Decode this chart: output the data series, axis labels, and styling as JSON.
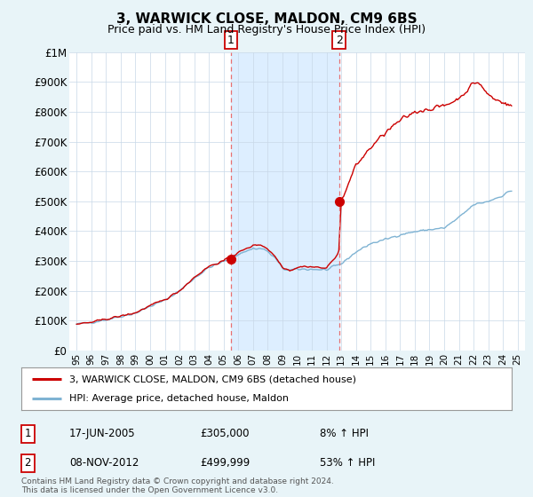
{
  "title": "3, WARWICK CLOSE, MALDON, CM9 6BS",
  "subtitle": "Price paid vs. HM Land Registry's House Price Index (HPI)",
  "legend_line1": "3, WARWICK CLOSE, MALDON, CM9 6BS (detached house)",
  "legend_line2": "HPI: Average price, detached house, Maldon",
  "annotation1_label": "1",
  "annotation1_date": "17-JUN-2005",
  "annotation1_price": "£305,000",
  "annotation1_hpi": "8% ↑ HPI",
  "annotation1_year": 2005.5,
  "annotation1_value": 305000,
  "annotation2_label": "2",
  "annotation2_date": "08-NOV-2012",
  "annotation2_price": "£499,999",
  "annotation2_hpi": "53% ↑ HPI",
  "annotation2_year": 2012.85,
  "annotation2_value": 499999,
  "footnote": "Contains HM Land Registry data © Crown copyright and database right 2024.\nThis data is licensed under the Open Government Licence v3.0.",
  "ylim": [
    0,
    1000000
  ],
  "yticks": [
    0,
    100000,
    200000,
    300000,
    400000,
    500000,
    600000,
    700000,
    800000,
    900000,
    1000000
  ],
  "ytick_labels": [
    "£0",
    "£100K",
    "£200K",
    "£300K",
    "£400K",
    "£500K",
    "£600K",
    "£700K",
    "£800K",
    "£900K",
    "£1M"
  ],
  "hpi_color": "#7fb3d3",
  "price_color": "#cc0000",
  "dashed_line_color": "#e87070",
  "shade_color": "#ddeeff",
  "background_color": "#e8f4f8",
  "plot_bg_color": "#ffffff",
  "xlim_min": 1994.5,
  "xlim_max": 2025.5,
  "xtick_years": [
    1995,
    1996,
    1997,
    1998,
    1999,
    2000,
    2001,
    2002,
    2003,
    2004,
    2005,
    2006,
    2007,
    2008,
    2009,
    2010,
    2011,
    2012,
    2013,
    2014,
    2015,
    2016,
    2017,
    2018,
    2019,
    2020,
    2021,
    2022,
    2023,
    2024,
    2025
  ],
  "xtick_labels": [
    "95",
    "96",
    "97",
    "98",
    "99",
    "00",
    "01",
    "02",
    "03",
    "04",
    "05",
    "06",
    "07",
    "08",
    "09",
    "10",
    "11",
    "12",
    "13",
    "14",
    "15",
    "16",
    "17",
    "18",
    "19",
    "20",
    "21",
    "22",
    "23",
    "24",
    "25"
  ]
}
